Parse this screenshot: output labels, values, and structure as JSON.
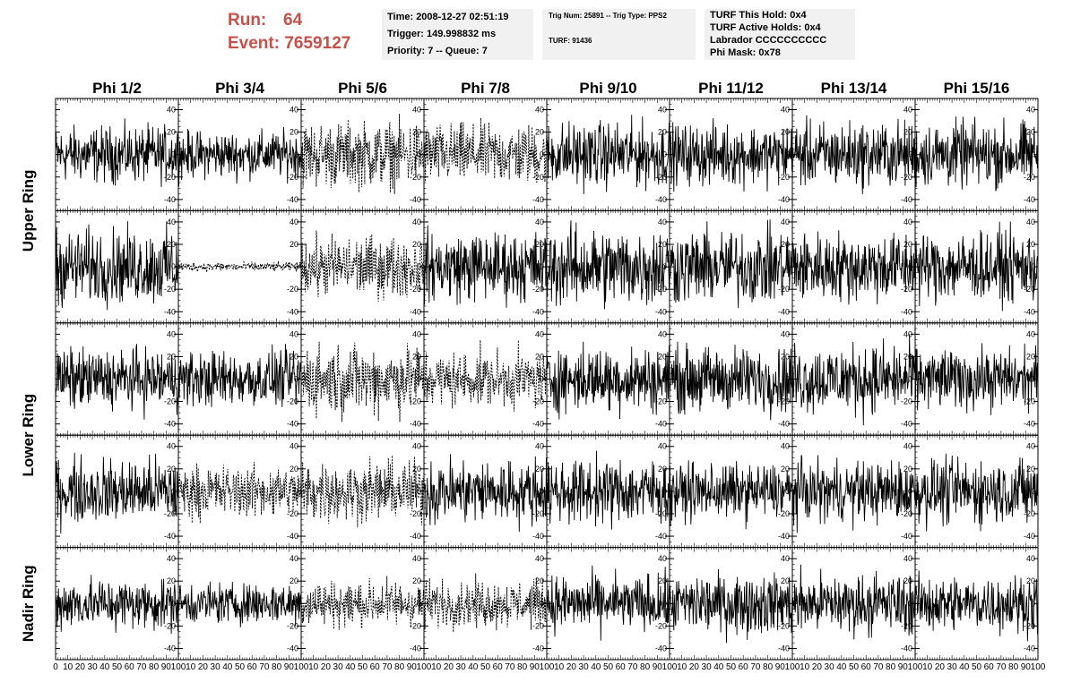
{
  "header": {
    "run_label": "Run:",
    "run_value": "64",
    "event_label": "Event:",
    "event_value": "7659127",
    "run_color": "#c8504b"
  },
  "info_time": {
    "time": "Time: 2008-12-27 02:51:19",
    "trigger": "Trigger: 149.998832 ms",
    "priority": "Priority: 7 -- Queue: 7"
  },
  "info_trig": {
    "trig": "Trig Num: 25891 -- Trig Type: PPS2",
    "turf": "TURF: 91436"
  },
  "info_turf": {
    "hold": "TURF This Hold: 0x4",
    "active": "TURF Active Holds: 0x4",
    "labrador": "Labrador CCCCCCCCCC",
    "phimask": "Phi Mask: 0x78"
  },
  "chart_data": {
    "type": "line",
    "columns": [
      "Phi 1/2",
      "Phi 3/4",
      "Phi 5/6",
      "Phi 7/8",
      "Phi 9/10",
      "Phi 11/12",
      "Phi 13/14",
      "Phi 15/16"
    ],
    "ring_labels": [
      "Upper Ring",
      "Lower Ring",
      "Nadir Ring"
    ],
    "rows": 5,
    "xlim": [
      0,
      100
    ],
    "ylim": [
      -50,
      50
    ],
    "x_ticks": [
      0,
      10,
      20,
      30,
      40,
      50,
      60,
      70,
      80,
      90,
      100
    ],
    "x_tick_labels": [
      "0",
      "10",
      "20",
      "30",
      "40",
      "50",
      "60",
      "70",
      "80",
      "90",
      "100"
    ],
    "y_ticks": [
      -40,
      -20,
      0,
      20,
      40
    ],
    "y_tick_labels": [
      "-40",
      "-20",
      "0",
      "20",
      "40"
    ],
    "num_samples": 260,
    "panels": [
      {
        "row": 0,
        "col": 0,
        "amplitude": 12,
        "dashed": false
      },
      {
        "row": 0,
        "col": 1,
        "amplitude": 10,
        "dashed": false
      },
      {
        "row": 0,
        "col": 2,
        "amplitude": 14,
        "dashed": true
      },
      {
        "row": 0,
        "col": 3,
        "amplitude": 13,
        "dashed": true
      },
      {
        "row": 0,
        "col": 4,
        "amplitude": 14,
        "dashed": false
      },
      {
        "row": 0,
        "col": 5,
        "amplitude": 13,
        "dashed": false
      },
      {
        "row": 0,
        "col": 6,
        "amplitude": 14,
        "dashed": false
      },
      {
        "row": 0,
        "col": 7,
        "amplitude": 14,
        "dashed": false
      },
      {
        "row": 1,
        "col": 0,
        "amplitude": 16,
        "dashed": false
      },
      {
        "row": 1,
        "col": 1,
        "amplitude": 2,
        "dashed": true
      },
      {
        "row": 1,
        "col": 2,
        "amplitude": 13,
        "dashed": true
      },
      {
        "row": 1,
        "col": 3,
        "amplitude": 15,
        "dashed": false
      },
      {
        "row": 1,
        "col": 4,
        "amplitude": 17,
        "dashed": false
      },
      {
        "row": 1,
        "col": 5,
        "amplitude": 16,
        "dashed": false
      },
      {
        "row": 1,
        "col": 6,
        "amplitude": 15,
        "dashed": false
      },
      {
        "row": 1,
        "col": 7,
        "amplitude": 15,
        "dashed": false
      },
      {
        "row": 2,
        "col": 0,
        "amplitude": 13,
        "dashed": false
      },
      {
        "row": 2,
        "col": 1,
        "amplitude": 12,
        "dashed": false
      },
      {
        "row": 2,
        "col": 2,
        "amplitude": 15,
        "dashed": true
      },
      {
        "row": 2,
        "col": 3,
        "amplitude": 12,
        "dashed": true
      },
      {
        "row": 2,
        "col": 4,
        "amplitude": 14,
        "dashed": false
      },
      {
        "row": 2,
        "col": 5,
        "amplitude": 14,
        "dashed": false
      },
      {
        "row": 2,
        "col": 6,
        "amplitude": 15,
        "dashed": false
      },
      {
        "row": 2,
        "col": 7,
        "amplitude": 13,
        "dashed": false
      },
      {
        "row": 3,
        "col": 0,
        "amplitude": 14,
        "dashed": false
      },
      {
        "row": 3,
        "col": 1,
        "amplitude": 11,
        "dashed": true
      },
      {
        "row": 3,
        "col": 2,
        "amplitude": 13,
        "dashed": true
      },
      {
        "row": 3,
        "col": 3,
        "amplitude": 14,
        "dashed": false
      },
      {
        "row": 3,
        "col": 4,
        "amplitude": 14,
        "dashed": false
      },
      {
        "row": 3,
        "col": 5,
        "amplitude": 12,
        "dashed": false
      },
      {
        "row": 3,
        "col": 6,
        "amplitude": 13,
        "dashed": false
      },
      {
        "row": 3,
        "col": 7,
        "amplitude": 14,
        "dashed": false
      },
      {
        "row": 4,
        "col": 0,
        "amplitude": 11,
        "dashed": false
      },
      {
        "row": 4,
        "col": 1,
        "amplitude": 9,
        "dashed": false
      },
      {
        "row": 4,
        "col": 2,
        "amplitude": 10,
        "dashed": true
      },
      {
        "row": 4,
        "col": 3,
        "amplitude": 10,
        "dashed": true
      },
      {
        "row": 4,
        "col": 4,
        "amplitude": 12,
        "dashed": false
      },
      {
        "row": 4,
        "col": 5,
        "amplitude": 13,
        "dashed": false
      },
      {
        "row": 4,
        "col": 6,
        "amplitude": 13,
        "dashed": false
      },
      {
        "row": 4,
        "col": 7,
        "amplitude": 12,
        "dashed": false
      }
    ]
  }
}
